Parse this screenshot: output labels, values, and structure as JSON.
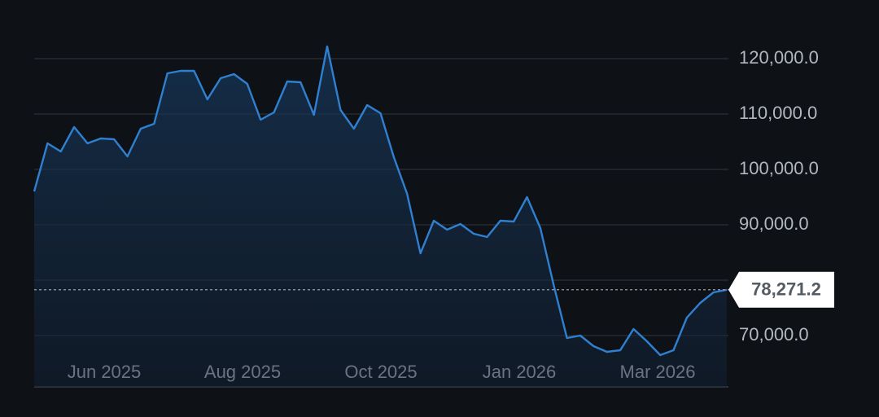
{
  "chart_data": {
    "type": "line",
    "series": [
      {
        "color": "#2f80d0",
        "values": [
          96030,
          104706,
          103235,
          107647,
          104706,
          105588,
          105441,
          102353,
          107353,
          108235,
          117353,
          117794,
          117794,
          112647,
          116471,
          117206,
          115441,
          108971,
          110294,
          115882,
          115735,
          109853,
          122206,
          110735,
          107353,
          111618,
          110147,
          102206,
          95588,
          84853,
          90735,
          89118,
          90147,
          88382,
          87794,
          90735,
          90588,
          95000,
          89412,
          79118,
          69559,
          70000,
          68088,
          67059,
          67353,
          71176,
          68971,
          66471,
          67353,
          73235,
          75882,
          77794,
          78271.2
        ]
      }
    ],
    "ylim": [
      60735,
      124706
    ],
    "yticks": [
      {
        "value": 70000,
        "label": "70,000.0"
      },
      {
        "value": 90000,
        "label": "90,000.0"
      },
      {
        "value": 100000,
        "label": "100,000.0"
      },
      {
        "value": 110000,
        "label": "110,000.0"
      },
      {
        "value": 120000,
        "label": "120,000.0"
      }
    ],
    "grid": [
      70000,
      80000,
      90000,
      100000,
      110000,
      120000
    ],
    "xtick_labels": [
      "Jun 2025",
      "Aug 2025",
      "Oct 2025",
      "Jan 2026",
      "Mar 2026"
    ],
    "last_value": {
      "value": 78271.2,
      "label": "78,271.2"
    }
  }
}
